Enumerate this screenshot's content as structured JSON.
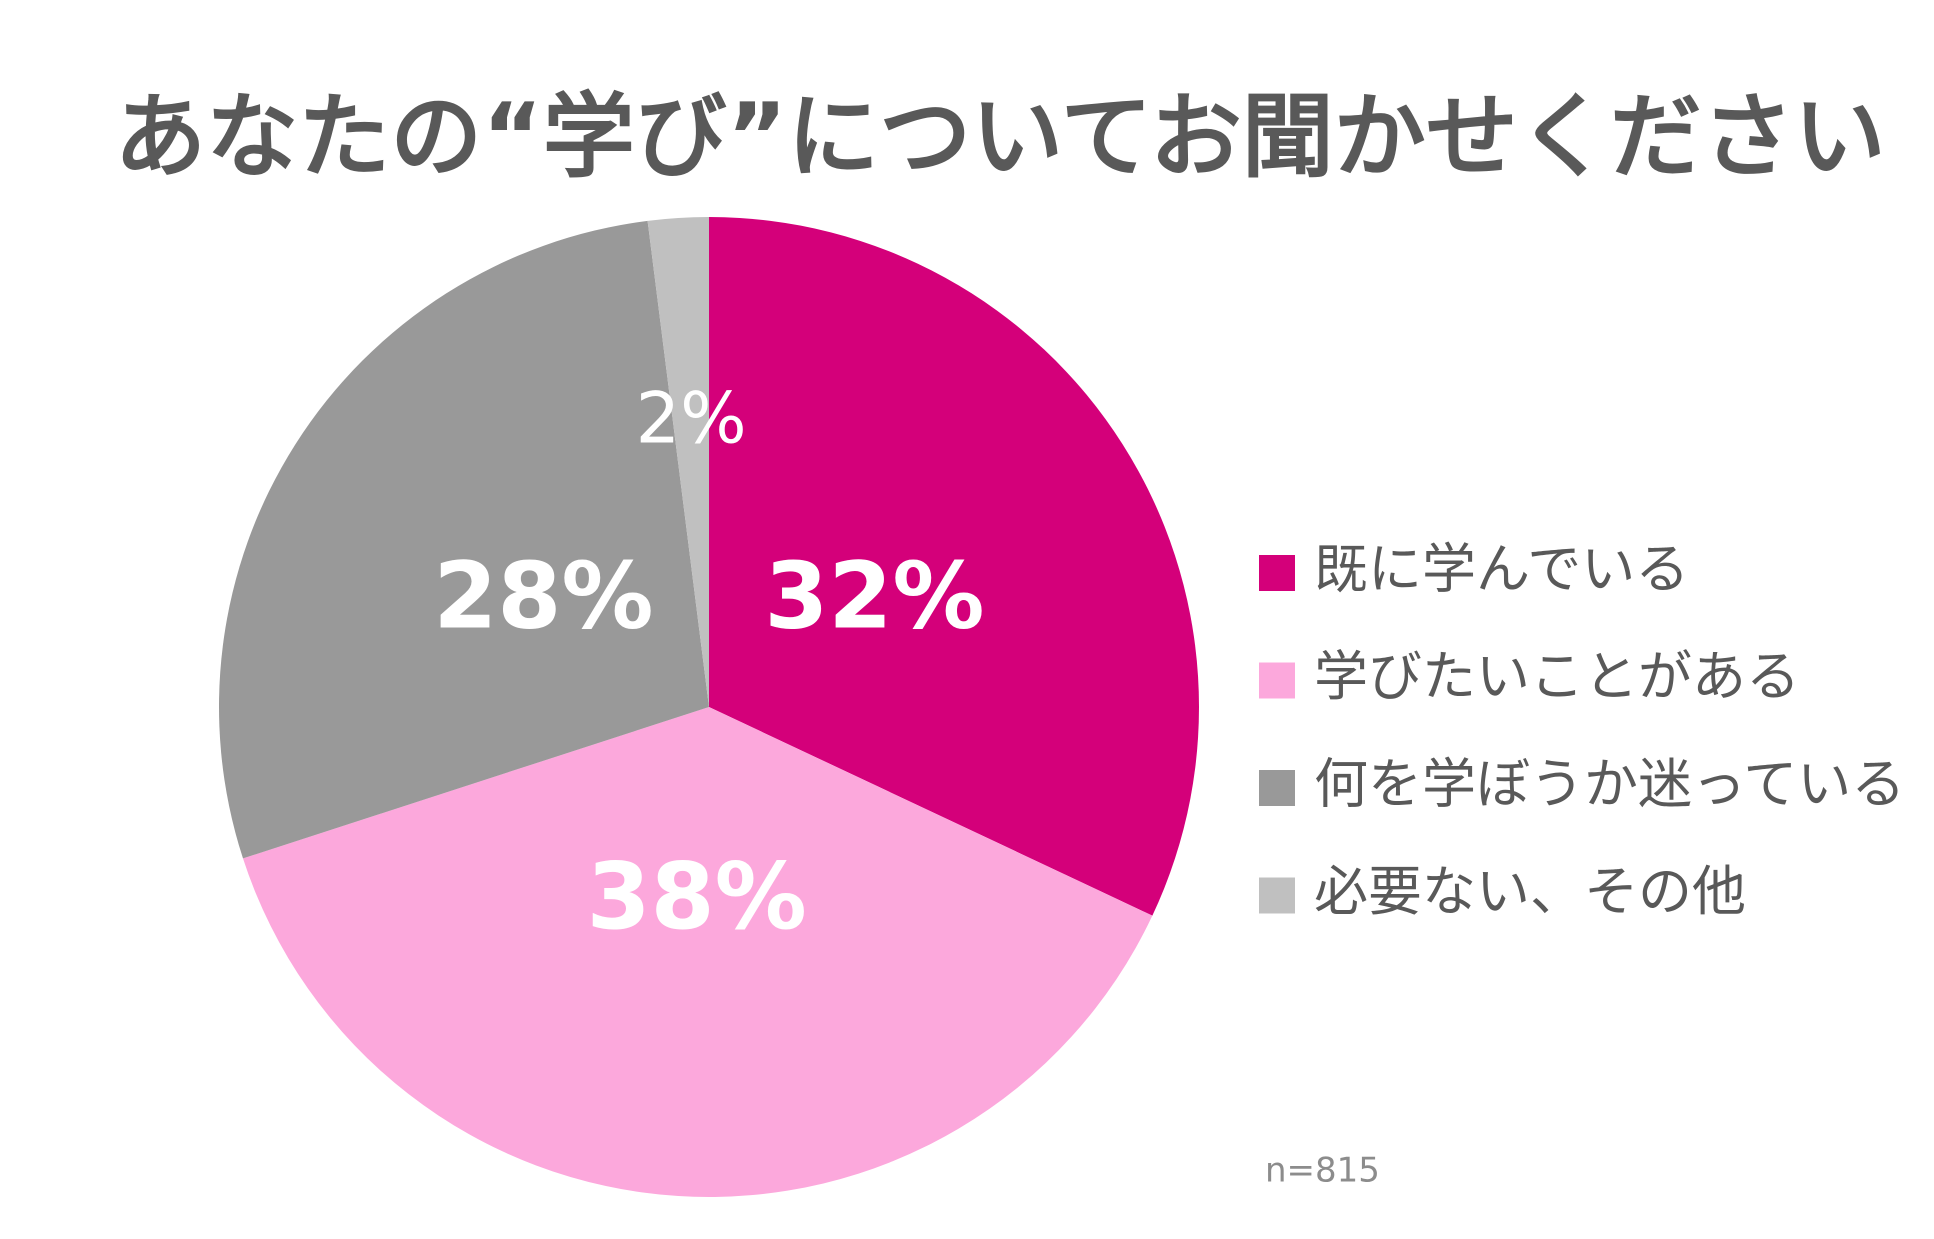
{
  "chart_data": {
    "type": "pie",
    "title": "あなたの“学び”についてお聞かせください",
    "categories": [
      "既に学んでいる",
      "学びたいことがある",
      "何を学ぼうか迷っている",
      "必要ない、その他"
    ],
    "values": [
      32,
      38,
      28,
      2
    ],
    "value_labels": [
      "32%",
      "38%",
      "28%",
      "2%"
    ],
    "colors": [
      "#d4007a",
      "#fca8dc",
      "#999999",
      "#c0c0c0"
    ],
    "legend": "right",
    "note": "n=815"
  }
}
